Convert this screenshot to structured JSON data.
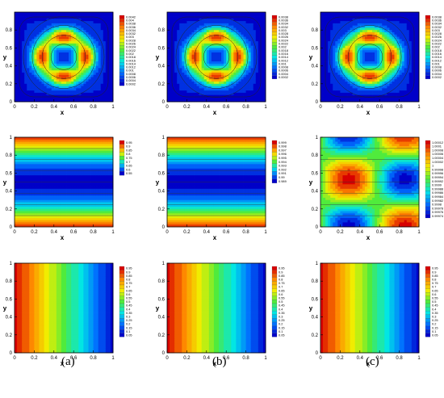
{
  "figure": {
    "panel_labels": [
      "(a)",
      "(b)",
      "(c)"
    ]
  },
  "chart_data": [
    {
      "type": "heatmap",
      "row": 0,
      "col": 0,
      "field": "ring",
      "xlabel": "x",
      "ylabel": "y",
      "xlim": [
        0,
        1
      ],
      "ylim": [
        0,
        1
      ],
      "xticks": [
        "0",
        "0.2",
        "0.4",
        "0.6",
        "0.8",
        "1"
      ],
      "yticks": [
        "0",
        "0.2",
        "0.4",
        "0.6",
        "0.8"
      ],
      "colorbar": [
        "0.0042",
        "0.004",
        "0.0038",
        "0.0036",
        "0.0034",
        "0.0032",
        "0.003",
        "0.0028",
        "0.0026",
        "0.0024",
        "0.0022",
        "0.002",
        "0.0018",
        "0.0016",
        "0.0014",
        "0.0012",
        "0.001",
        "0.0008",
        "0.0006",
        "0.0004",
        "0.0002"
      ]
    },
    {
      "type": "heatmap",
      "row": 0,
      "col": 1,
      "field": "ring",
      "xlabel": "x",
      "ylabel": "y",
      "xlim": [
        0,
        1
      ],
      "ylim": [
        0,
        1
      ],
      "xticks": [
        "0",
        "0.2",
        "0.4",
        "0.6",
        "0.8",
        "1"
      ],
      "yticks": [
        "0",
        "0.2",
        "0.4",
        "0.6",
        "0.8"
      ],
      "colorbar": [
        "0.0038",
        "0.0036",
        "0.0034",
        "0.0032",
        "0.003",
        "0.0028",
        "0.0026",
        "0.0024",
        "0.0022",
        "0.002",
        "0.0018",
        "0.0016",
        "0.0014",
        "0.0012",
        "0.001",
        "0.0008",
        "0.0006",
        "0.0004",
        "0.0002"
      ]
    },
    {
      "type": "heatmap",
      "row": 0,
      "col": 2,
      "field": "ring",
      "xlabel": "x",
      "ylabel": "y",
      "xlim": [
        0,
        1
      ],
      "ylim": [
        0,
        1
      ],
      "xticks": [
        "0",
        "0.2",
        "0.4",
        "0.6",
        "0.8",
        "1"
      ],
      "yticks": [
        "0",
        "0.2",
        "0.4",
        "0.6",
        "0.8"
      ],
      "colorbar": [
        "0.0038",
        "0.0036",
        "0.0034",
        "0.0032",
        "0.003",
        "0.0028",
        "0.0026",
        "0.0024",
        "0.0022",
        "0.002",
        "0.0018",
        "0.0016",
        "0.0014",
        "0.0012",
        "0.001",
        "0.0008",
        "0.0006",
        "0.0004",
        "0.0002"
      ]
    },
    {
      "type": "heatmap",
      "row": 1,
      "col": 0,
      "field": "bands",
      "xlabel": "x",
      "ylabel": "y",
      "xlim": [
        0,
        1
      ],
      "ylim": [
        0,
        1
      ],
      "xticks": [
        "0",
        "0.2",
        "0.4",
        "0.6",
        "0.8",
        "1"
      ],
      "yticks": [
        "0",
        "0.2",
        "0.4",
        "0.6",
        "0.8",
        "1"
      ],
      "colorbar": [
        "0.95",
        "0.9",
        "0.85",
        "0.8",
        "0.75",
        "0.7",
        "0.65",
        "0.6",
        "0.55"
      ]
    },
    {
      "type": "heatmap",
      "row": 1,
      "col": 1,
      "field": "bands",
      "xlabel": "x",
      "ylabel": "y",
      "xlim": [
        0,
        1
      ],
      "ylim": [
        0,
        1
      ],
      "xticks": [
        "0",
        "0.2",
        "0.4",
        "0.6",
        "0.8",
        "1"
      ],
      "yticks": [
        "0",
        "0.2",
        "0.4",
        "0.6",
        "0.8",
        "1"
      ],
      "colorbar": [
        "0.999",
        "0.998",
        "0.997",
        "0.996",
        "0.995",
        "0.994",
        "0.993",
        "0.992",
        "0.991",
        "0.99",
        "0.989"
      ]
    },
    {
      "type": "heatmap",
      "row": 1,
      "col": 2,
      "field": "cells",
      "xlabel": "x",
      "ylabel": "y",
      "xlim": [
        0,
        1
      ],
      "ylim": [
        0,
        1
      ],
      "xticks": [
        "0",
        "0.2",
        "0.4",
        "0.6",
        "0.8",
        "1"
      ],
      "yticks": [
        "0",
        "0.2",
        "0.4",
        "0.6",
        "0.8",
        "1"
      ],
      "colorbar": [
        "1.00012",
        "1.0001",
        "1.00008",
        "1.00006",
        "1.00004",
        "1.00002",
        "1",
        "0.99998",
        "0.99996",
        "0.99994",
        "0.99992",
        "0.9999",
        "0.99988",
        "0.99986",
        "0.99984",
        "0.99982",
        "0.9998",
        "0.99978",
        "0.99976",
        "0.99974"
      ]
    },
    {
      "type": "heatmap",
      "row": 2,
      "col": 0,
      "field": "linear",
      "xlabel": "x",
      "ylabel": "y",
      "xlim": [
        0,
        1
      ],
      "ylim": [
        0,
        1
      ],
      "xticks": [
        "0",
        "0.2",
        "0.4",
        "0.6",
        "0.8",
        "1"
      ],
      "yticks": [
        "0",
        "0.2",
        "0.4",
        "0.6",
        "0.8",
        "1"
      ],
      "colorbar": [
        "0.95",
        "0.9",
        "0.85",
        "0.8",
        "0.75",
        "0.7",
        "0.65",
        "0.6",
        "0.55",
        "0.5",
        "0.45",
        "0.4",
        "0.35",
        "0.3",
        "0.25",
        "0.2",
        "0.15",
        "0.1",
        "0.05"
      ]
    },
    {
      "type": "heatmap",
      "row": 2,
      "col": 1,
      "field": "linear",
      "xlabel": "x",
      "ylabel": "y",
      "xlim": [
        0,
        1
      ],
      "ylim": [
        0,
        1
      ],
      "xticks": [
        "0",
        "0.2",
        "0.4",
        "0.6",
        "0.8",
        "1"
      ],
      "yticks": [
        "0",
        "0.2",
        "0.4",
        "0.6",
        "0.8",
        "1"
      ],
      "colorbar": [
        "0.95",
        "0.9",
        "0.85",
        "0.8",
        "0.75",
        "0.7",
        "0.65",
        "0.6",
        "0.55",
        "0.5",
        "0.45",
        "0.4",
        "0.35",
        "0.3",
        "0.25",
        "0.2",
        "0.15",
        "0.1",
        "0.05"
      ]
    },
    {
      "type": "heatmap",
      "row": 2,
      "col": 2,
      "field": "linear",
      "xlabel": "x",
      "ylabel": "y",
      "xlim": [
        0,
        1
      ],
      "ylim": [
        0,
        1
      ],
      "xticks": [
        "0",
        "0.2",
        "0.4",
        "0.6",
        "0.8",
        "1"
      ],
      "yticks": [
        "0",
        "0.2",
        "0.4",
        "0.6",
        "0.8",
        "1"
      ],
      "colorbar": [
        "0.95",
        "0.9",
        "0.85",
        "0.8",
        "0.75",
        "0.7",
        "0.65",
        "0.6",
        "0.55",
        "0.5",
        "0.45",
        "0.4",
        "0.35",
        "0.3",
        "0.25",
        "0.2",
        "0.15",
        "0.1",
        "0.05"
      ]
    }
  ]
}
